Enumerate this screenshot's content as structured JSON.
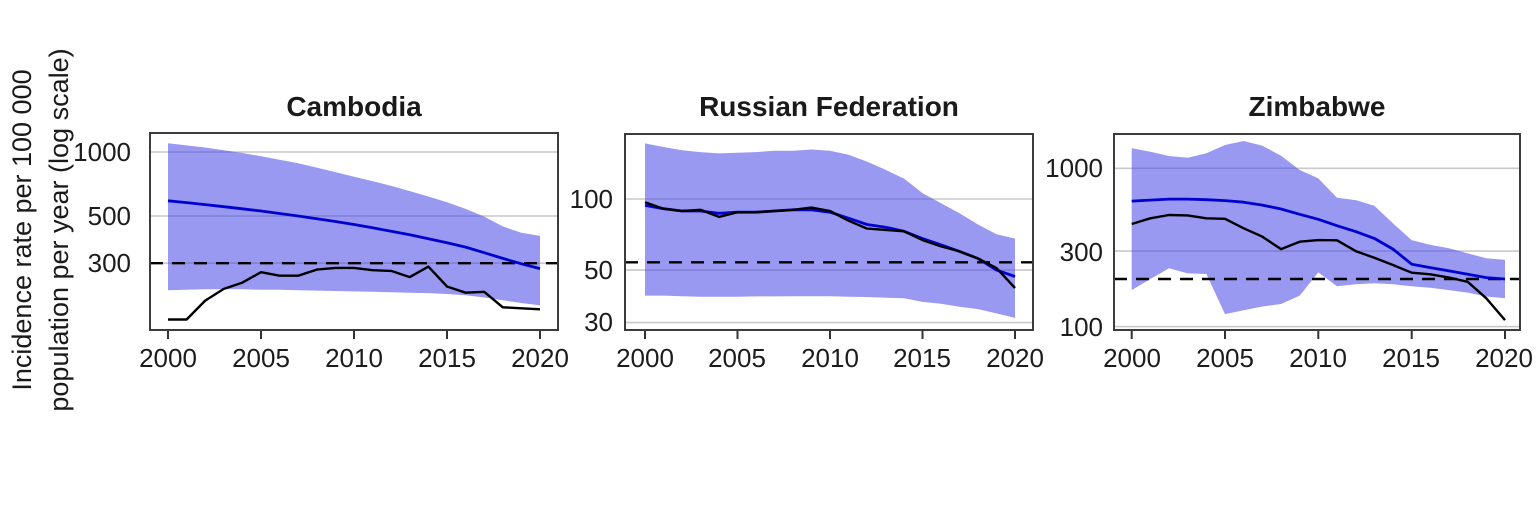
{
  "y_axis_label": {
    "line1": "Incidence rate per 100 000",
    "line2": "population per year (log scale)"
  },
  "colors": {
    "band": "rgba(70,70,232,0.55)",
    "blue_line": "#0000d0",
    "black_line": "#000000",
    "gridline": "#c9c9c9",
    "border": "#3c3c3c",
    "dashed_line": "#000000",
    "tick": "#333333"
  },
  "chart_data": [
    {
      "type": "line",
      "title": "Cambodia",
      "y_scale": "log10",
      "xlim": [
        2000,
        2020
      ],
      "ylim": [
        145.5,
        1229
      ],
      "x_ticks": [
        2000,
        2005,
        2010,
        2015,
        2020
      ],
      "x_tick_labels": [
        "2000",
        "2005",
        "2010",
        "2015",
        "2020"
      ],
      "y_ticks": [
        1000,
        500,
        300
      ],
      "y_tick_labels": [
        "1000",
        "500",
        "300"
      ],
      "reference_line": 300,
      "x": [
        2000,
        2001,
        2002,
        2003,
        2004,
        2005,
        2006,
        2007,
        2008,
        2009,
        2010,
        2011,
        2012,
        2013,
        2014,
        2015,
        2016,
        2017,
        2018,
        2019,
        2020
      ],
      "band": {
        "upper": [
          1100,
          1075,
          1050,
          1020,
          990,
          955,
          920,
          885,
          845,
          805,
          765,
          730,
          693,
          655,
          618,
          580,
          540,
          497,
          447,
          417,
          403
        ],
        "lower": [
          224,
          225,
          226,
          226,
          226,
          225,
          225,
          224,
          223,
          222,
          221,
          220,
          219,
          218,
          217,
          215,
          212,
          207,
          201,
          195,
          190
        ]
      },
      "series": [
        {
          "name": "blue-line",
          "values": [
            590,
            578,
            566,
            553,
            541,
            528,
            514,
            500,
            486,
            471,
            456,
            440,
            424,
            408,
            391,
            374,
            357,
            336,
            316,
            298,
            283
          ]
        },
        {
          "name": "black-line",
          "values": [
            163,
            163,
            200,
            227,
            243,
            272,
            262,
            262,
            280,
            285,
            285,
            278,
            276,
            258,
            289,
            233,
            218,
            220,
            186,
            184,
            182
          ]
        }
      ]
    },
    {
      "type": "line",
      "title": "Russian Federation",
      "y_scale": "log10",
      "xlim": [
        2000,
        2020
      ],
      "ylim": [
        27.9,
        188.5
      ],
      "x_ticks": [
        2000,
        2005,
        2010,
        2015,
        2020
      ],
      "x_tick_labels": [
        "2000",
        "2005",
        "2010",
        "2015",
        "2020"
      ],
      "y_ticks": [
        100,
        50,
        30
      ],
      "y_tick_labels": [
        "100",
        "50",
        "30"
      ],
      "reference_line": 54,
      "x": [
        2000,
        2001,
        2002,
        2003,
        2004,
        2005,
        2006,
        2007,
        2008,
        2009,
        2010,
        2011,
        2012,
        2013,
        2014,
        2015,
        2016,
        2017,
        2018,
        2019,
        2020
      ],
      "band": {
        "upper": [
          172,
          166,
          161,
          158,
          156,
          157,
          158,
          160,
          160,
          162,
          160,
          154,
          144,
          133,
          122,
          106,
          96,
          87,
          78,
          71,
          68
        ],
        "lower": [
          39,
          39,
          38.8,
          38.6,
          38.6,
          38.6,
          38.7,
          38.7,
          38.8,
          38.8,
          38.8,
          38.6,
          38.5,
          38.2,
          38,
          36.7,
          36,
          35,
          34.2,
          32.8,
          31.4
        ]
      },
      "series": [
        {
          "name": "blue-line",
          "values": [
            94,
            91,
            89,
            89,
            87,
            88,
            88,
            89,
            90,
            90,
            88,
            83,
            78,
            76,
            73,
            68,
            64,
            60,
            56,
            50,
            47
          ]
        },
        {
          "name": "black-line",
          "values": [
            97,
            91,
            89,
            90,
            84,
            88,
            88,
            89,
            90,
            92,
            89,
            81,
            75,
            74,
            73,
            67,
            63,
            60,
            56,
            51,
            42
          ]
        }
      ]
    },
    {
      "type": "line",
      "title": "Zimbabwe",
      "y_scale": "log10",
      "xlim": [
        2000,
        2020
      ],
      "ylim": [
        95.2,
        1647
      ],
      "x_ticks": [
        2000,
        2005,
        2010,
        2015,
        2020
      ],
      "x_tick_labels": [
        "2000",
        "2005",
        "2010",
        "2015",
        "2020"
      ],
      "y_ticks": [
        1000,
        300,
        100
      ],
      "y_tick_labels": [
        "1000",
        "300",
        "100"
      ],
      "reference_line": 200,
      "x": [
        2000,
        2001,
        2002,
        2003,
        2004,
        2005,
        2006,
        2007,
        2008,
        2009,
        2010,
        2011,
        2012,
        2013,
        2014,
        2015,
        2016,
        2017,
        2018,
        2019,
        2020
      ],
      "band": {
        "upper": [
          1338,
          1274,
          1196,
          1167,
          1243,
          1403,
          1487,
          1390,
          1200,
          975,
          864,
          652,
          630,
          580,
          449,
          352,
          328,
          313,
          290,
          270,
          264
        ],
        "lower": [
          170,
          200,
          234,
          217,
          215,
          120,
          127,
          134,
          139,
          157,
          220,
          180,
          185,
          188,
          185,
          180,
          176,
          170,
          164,
          155,
          151
        ]
      },
      "series": [
        {
          "name": "blue-line",
          "values": [
            621,
            630,
            639,
            639,
            633,
            625,
            611,
            586,
            553,
            512,
            476,
            434,
            398,
            361,
            309,
            248,
            236,
            225,
            214,
            204,
            200
          ]
        },
        {
          "name": "black-line",
          "values": [
            445,
            483,
            507,
            504,
            483,
            480,
            418,
            370,
            309,
            344,
            352,
            351,
            300,
            272,
            245,
            219,
            214,
            204,
            192,
            151,
            110
          ]
        }
      ]
    }
  ]
}
